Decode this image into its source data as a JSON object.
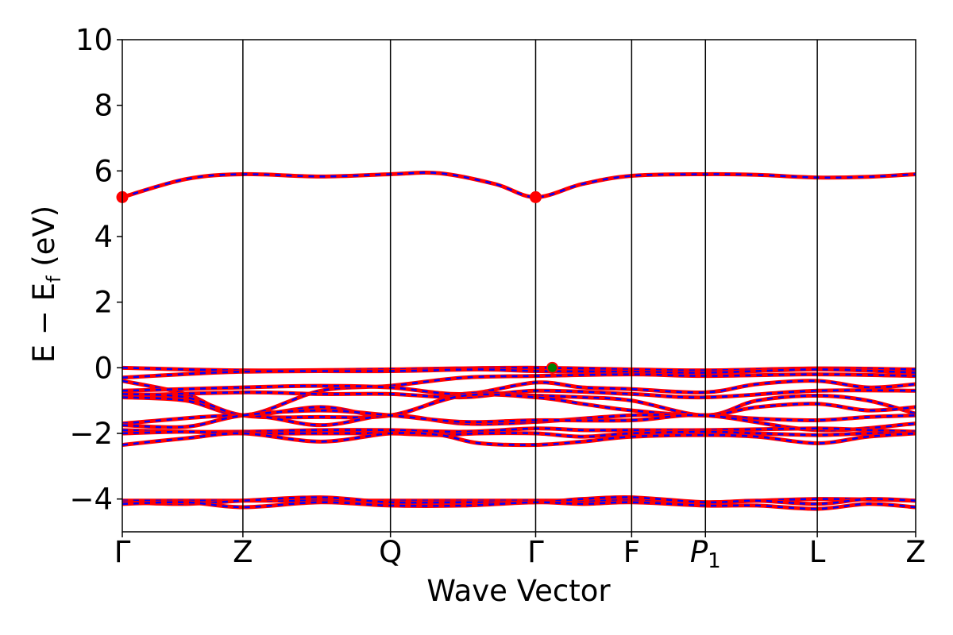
{
  "chart_data": {
    "type": "line",
    "title": "",
    "xlabel": "Wave Vector",
    "ylabel": "E − E_f (eV)",
    "ylabel_parts": {
      "main": "E − E",
      "sub": "f",
      "unit": " (eV)"
    },
    "ylim": [
      -5,
      10
    ],
    "yticks": [
      -4,
      -2,
      0,
      2,
      4,
      6,
      8,
      10
    ],
    "ytick_labels": [
      "−4",
      "−2",
      "0",
      "2",
      "4",
      "6",
      "8",
      "10"
    ],
    "xlim": [
      0,
      1
    ],
    "kpoints": [
      {
        "label": "Γ",
        "x": 0.0
      },
      {
        "label": "Z",
        "x": 0.152
      },
      {
        "label": "Q",
        "x": 0.338
      },
      {
        "label": "Γ",
        "x": 0.521
      },
      {
        "label": "F",
        "x": 0.642
      },
      {
        "label": "P",
        "sub": "1",
        "x": 0.735
      },
      {
        "label": "L",
        "x": 0.876
      },
      {
        "label": "Z",
        "x": 1.0
      }
    ],
    "series_style": {
      "solid_color": "#ff0000",
      "dash_color": "#0000ff"
    },
    "bands": [
      {
        "x": [
          0,
          0.08,
          0.152,
          0.25,
          0.338,
          0.4,
          0.47,
          0.521,
          0.58,
          0.642,
          0.735,
          0.8,
          0.876,
          0.94,
          1.0
        ],
        "y": [
          5.2,
          5.75,
          5.9,
          5.83,
          5.9,
          5.93,
          5.6,
          5.2,
          5.6,
          5.85,
          5.9,
          5.88,
          5.8,
          5.82,
          5.9
        ]
      },
      {
        "x": [
          0,
          0.152,
          0.338,
          0.42,
          0.521,
          0.642,
          0.735,
          0.876,
          1.0
        ],
        "y": [
          0.0,
          -0.08,
          -0.05,
          -0.02,
          0.0,
          -0.05,
          -0.08,
          -0.02,
          -0.05
        ]
      },
      {
        "x": [
          0,
          0.152,
          0.338,
          0.45,
          0.521,
          0.642,
          0.735,
          0.876,
          1.0
        ],
        "y": [
          -0.3,
          -0.12,
          -0.1,
          -0.05,
          -0.1,
          -0.12,
          -0.15,
          -0.05,
          -0.15
        ]
      },
      {
        "x": [
          0,
          0.08,
          0.152,
          0.25,
          0.338,
          0.43,
          0.521,
          0.642,
          0.735,
          0.876,
          1.0
        ],
        "y": [
          -0.4,
          -0.8,
          -1.45,
          -0.7,
          -0.55,
          -0.3,
          -0.25,
          -0.2,
          -0.25,
          -0.2,
          -0.25
        ]
      },
      {
        "x": [
          0,
          0.152,
          0.25,
          0.338,
          0.43,
          0.521,
          0.58,
          0.642,
          0.735,
          0.8,
          0.876,
          0.94,
          1.0
        ],
        "y": [
          -0.7,
          -0.6,
          -0.55,
          -0.6,
          -0.8,
          -0.45,
          -0.6,
          -0.65,
          -0.75,
          -0.5,
          -0.4,
          -0.6,
          -0.5
        ]
      },
      {
        "x": [
          0,
          0.152,
          0.25,
          0.338,
          0.43,
          0.521,
          0.642,
          0.735,
          0.876,
          1.0
        ],
        "y": [
          -0.85,
          -0.75,
          -0.8,
          -0.8,
          -0.9,
          -0.7,
          -0.8,
          -0.9,
          -0.7,
          -0.7
        ]
      },
      {
        "x": [
          0,
          0.08,
          0.152,
          0.25,
          0.338,
          0.43,
          0.521,
          0.58,
          0.642,
          0.735,
          0.8,
          0.876,
          0.94,
          1.0
        ],
        "y": [
          -0.9,
          -1.0,
          -1.45,
          -1.2,
          -1.45,
          -0.8,
          -0.85,
          -0.9,
          -1.0,
          -1.45,
          -1.0,
          -0.85,
          -1.0,
          -1.4
        ]
      },
      {
        "x": [
          0,
          0.08,
          0.152,
          0.25,
          0.338,
          0.43,
          0.521,
          0.58,
          0.642,
          0.735,
          0.8,
          0.876,
          0.94,
          1.0
        ],
        "y": [
          -0.8,
          -0.9,
          -1.45,
          -1.5,
          -1.45,
          -0.85,
          -0.9,
          -1.1,
          -1.3,
          -1.45,
          -1.2,
          -1.1,
          -1.3,
          -1.2
        ]
      },
      {
        "x": [
          0,
          0.152,
          0.25,
          0.338,
          0.43,
          0.521,
          0.642,
          0.735,
          0.8,
          0.876,
          0.94,
          1.0
        ],
        "y": [
          -1.7,
          -1.45,
          -1.75,
          -1.45,
          -1.7,
          -1.65,
          -1.45,
          -1.45,
          -1.55,
          -1.6,
          -1.5,
          -1.45
        ]
      },
      {
        "x": [
          0,
          0.08,
          0.152,
          0.25,
          0.338,
          0.43,
          0.521,
          0.642,
          0.735,
          0.876,
          1.0
        ],
        "y": [
          -1.75,
          -1.8,
          -1.45,
          -1.3,
          -1.45,
          -1.65,
          -1.6,
          -1.6,
          -1.45,
          -1.9,
          -1.7
        ]
      },
      {
        "x": [
          0,
          0.08,
          0.152,
          0.25,
          0.338,
          0.43,
          0.521,
          0.58,
          0.642,
          0.735,
          0.876,
          0.94,
          1.0
        ],
        "y": [
          -1.9,
          -1.95,
          -1.95,
          -1.9,
          -1.9,
          -1.95,
          -1.85,
          -1.9,
          -1.9,
          -1.9,
          -1.85,
          -1.9,
          -1.95
        ]
      },
      {
        "x": [
          0,
          0.08,
          0.152,
          0.25,
          0.338,
          0.4,
          0.45,
          0.521,
          0.58,
          0.642,
          0.735,
          0.8,
          0.876,
          0.94,
          1.0
        ],
        "y": [
          -2.0,
          -1.95,
          -2.0,
          -2.0,
          -2.0,
          -2.05,
          -2.0,
          -2.0,
          -2.1,
          -2.0,
          -1.95,
          -2.0,
          -2.05,
          -2.0,
          -2.0
        ]
      },
      {
        "x": [
          0,
          0.08,
          0.152,
          0.25,
          0.338,
          0.4,
          0.45,
          0.521,
          0.58,
          0.642,
          0.735,
          0.8,
          0.876,
          0.94,
          1.0
        ],
        "y": [
          -2.35,
          -2.15,
          -2.0,
          -2.25,
          -2.0,
          -2.05,
          -2.3,
          -2.35,
          -2.25,
          -2.1,
          -2.05,
          -2.1,
          -2.3,
          -2.1,
          -2.0
        ]
      },
      {
        "x": [
          0,
          0.152,
          0.338,
          0.521,
          0.642,
          0.735,
          0.876,
          1.0
        ],
        "y": [
          -4.05,
          -4.05,
          -4.05,
          -4.05,
          -4.05,
          -4.1,
          -4.0,
          -4.05
        ]
      },
      {
        "x": [
          0,
          0.08,
          0.152,
          0.25,
          0.338,
          0.43,
          0.521,
          0.58,
          0.642,
          0.735,
          0.8,
          0.876,
          0.94,
          1.0
        ],
        "y": [
          -4.1,
          -4.15,
          -4.05,
          -3.95,
          -4.1,
          -4.1,
          -4.1,
          -4.0,
          -3.95,
          -4.1,
          -4.05,
          -4.15,
          -4.0,
          -4.05
        ]
      },
      {
        "x": [
          0,
          0.08,
          0.152,
          0.25,
          0.338,
          0.43,
          0.521,
          0.58,
          0.642,
          0.735,
          0.8,
          0.876,
          0.94,
          1.0
        ],
        "y": [
          -4.15,
          -4.1,
          -4.25,
          -4.1,
          -4.2,
          -4.2,
          -4.1,
          -4.15,
          -4.1,
          -4.2,
          -4.2,
          -4.3,
          -4.15,
          -4.25
        ]
      }
    ],
    "markers": [
      {
        "name": "cbm-marker-gamma",
        "x": 0.0,
        "y": 5.2,
        "fill": "#ff0000",
        "edge": "#ff0000"
      },
      {
        "name": "cbm-marker-gamma-2",
        "x": 0.521,
        "y": 5.2,
        "fill": "#ff0000",
        "edge": "#ff0000"
      },
      {
        "name": "vbm-marker",
        "x": 0.542,
        "y": 0.0,
        "fill": "#008000",
        "edge": "#ff0000"
      }
    ],
    "grid": false,
    "legend": "none"
  }
}
